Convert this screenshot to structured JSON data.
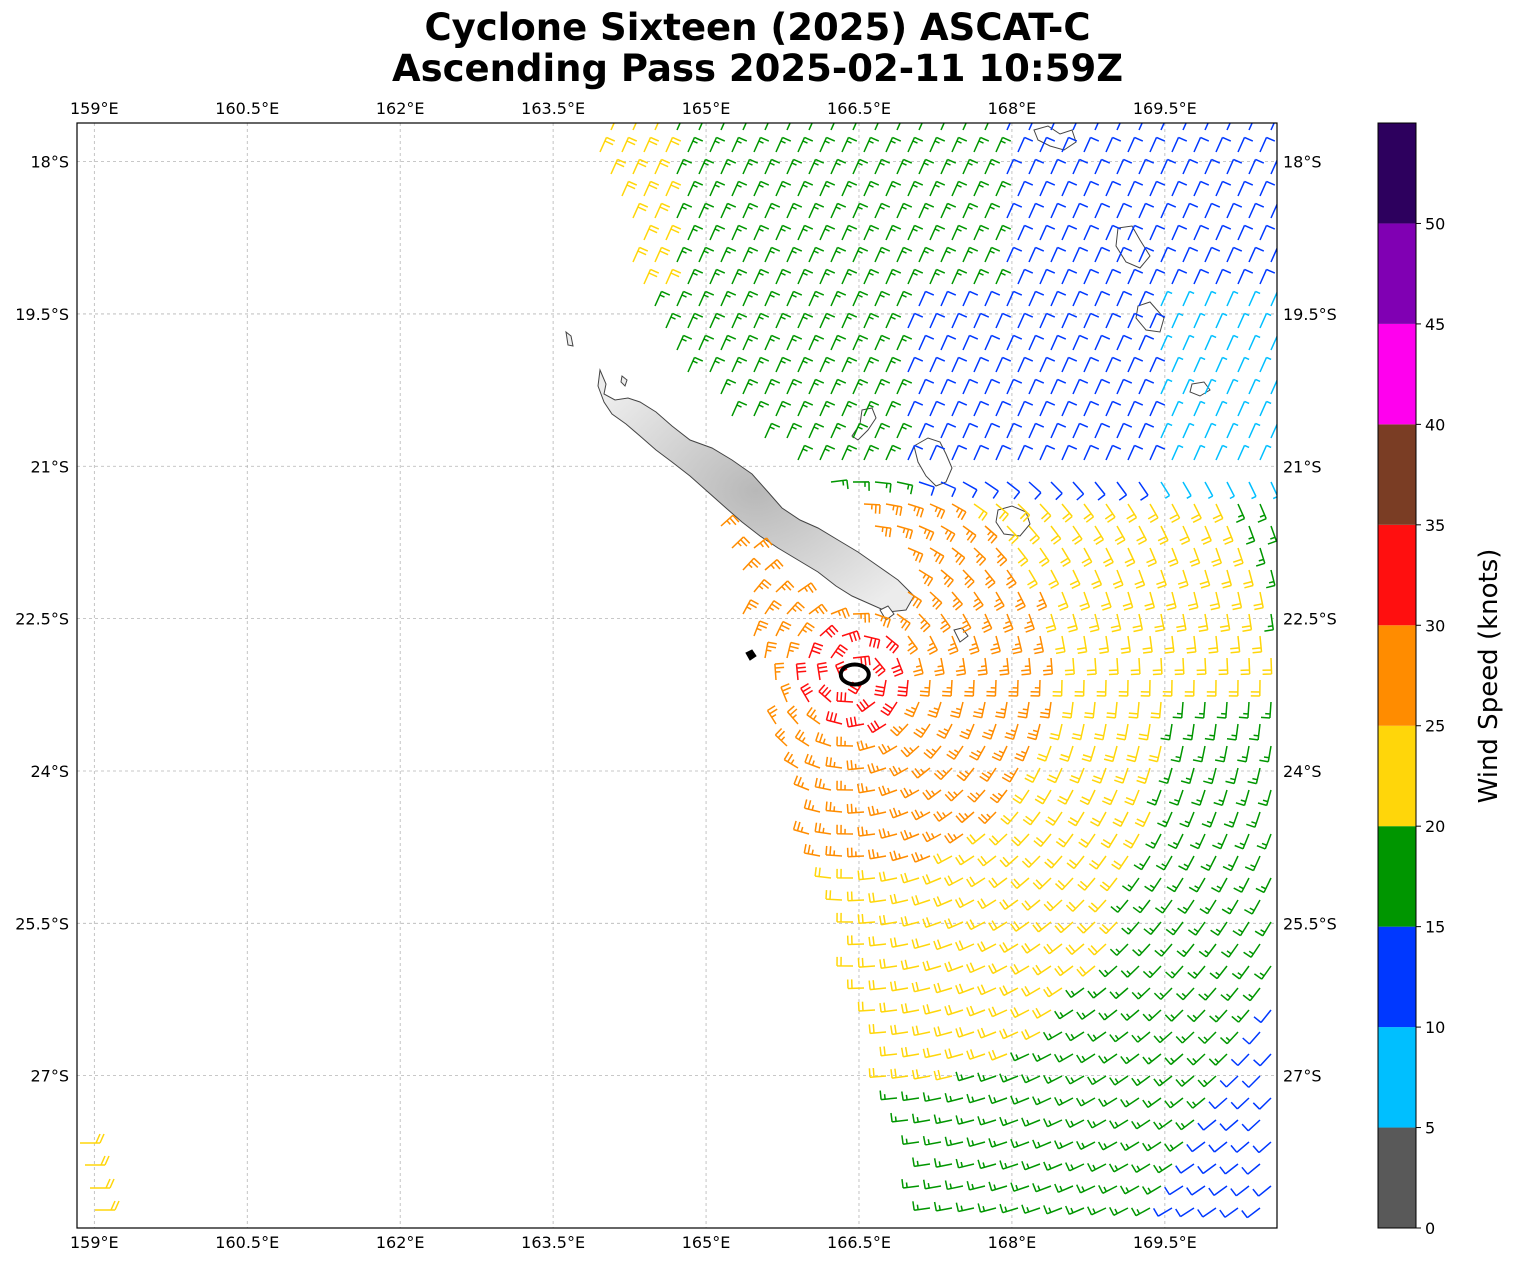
{
  "title_line1": "Cyclone Sixteen (2025) ASCAT-C",
  "title_line2": "Ascending Pass 2025-02-11 10:59Z",
  "map": {
    "lon_ticks": [
      {
        "value": 159.0,
        "label": "159°E"
      },
      {
        "value": 160.5,
        "label": "160.5°E"
      },
      {
        "value": 162.0,
        "label": "162°E"
      },
      {
        "value": 163.5,
        "label": "163.5°E"
      },
      {
        "value": 165.0,
        "label": "165°E"
      },
      {
        "value": 166.5,
        "label": "166.5°E"
      },
      {
        "value": 168.0,
        "label": "168°E"
      },
      {
        "value": 169.5,
        "label": "169.5°E"
      }
    ],
    "lat_ticks": [
      {
        "value": -18.0,
        "label": "18°S"
      },
      {
        "value": -19.5,
        "label": "19.5°S"
      },
      {
        "value": -21.0,
        "label": "21°S"
      },
      {
        "value": -22.5,
        "label": "22.5°S"
      },
      {
        "value": -24.0,
        "label": "24°S"
      },
      {
        "value": -25.5,
        "label": "25.5°S"
      },
      {
        "value": -27.0,
        "label": "27°S"
      }
    ],
    "lon_range": [
      158.83,
      170.6
    ],
    "lat_range": [
      -28.5,
      -17.62
    ],
    "storm_center": {
      "lon": 166.4,
      "lat": -23.05
    },
    "grid": true
  },
  "colorbar": {
    "label": "Wind Speed (knots)",
    "range": [
      0,
      55
    ],
    "bins": [
      {
        "from": 0,
        "to": 5,
        "color": "#595959"
      },
      {
        "from": 5,
        "to": 10,
        "color": "#00bfff"
      },
      {
        "from": 10,
        "to": 15,
        "color": "#0038ff"
      },
      {
        "from": 15,
        "to": 20,
        "color": "#009600"
      },
      {
        "from": 20,
        "to": 25,
        "color": "#ffd60a"
      },
      {
        "from": 25,
        "to": 30,
        "color": "#ff8c00"
      },
      {
        "from": 30,
        "to": 35,
        "color": "#ff0f0f"
      },
      {
        "from": 35,
        "to": 40,
        "color": "#7a3d24"
      },
      {
        "from": 40,
        "to": 45,
        "color": "#ff00ee"
      },
      {
        "from": 45,
        "to": 50,
        "color": "#8000b3"
      },
      {
        "from": 50,
        "to": 55,
        "color": "#2d005e"
      }
    ],
    "tick_labels": [
      "0",
      "5",
      "10",
      "15",
      "20",
      "25",
      "30",
      "35",
      "40",
      "45",
      "50"
    ]
  }
}
